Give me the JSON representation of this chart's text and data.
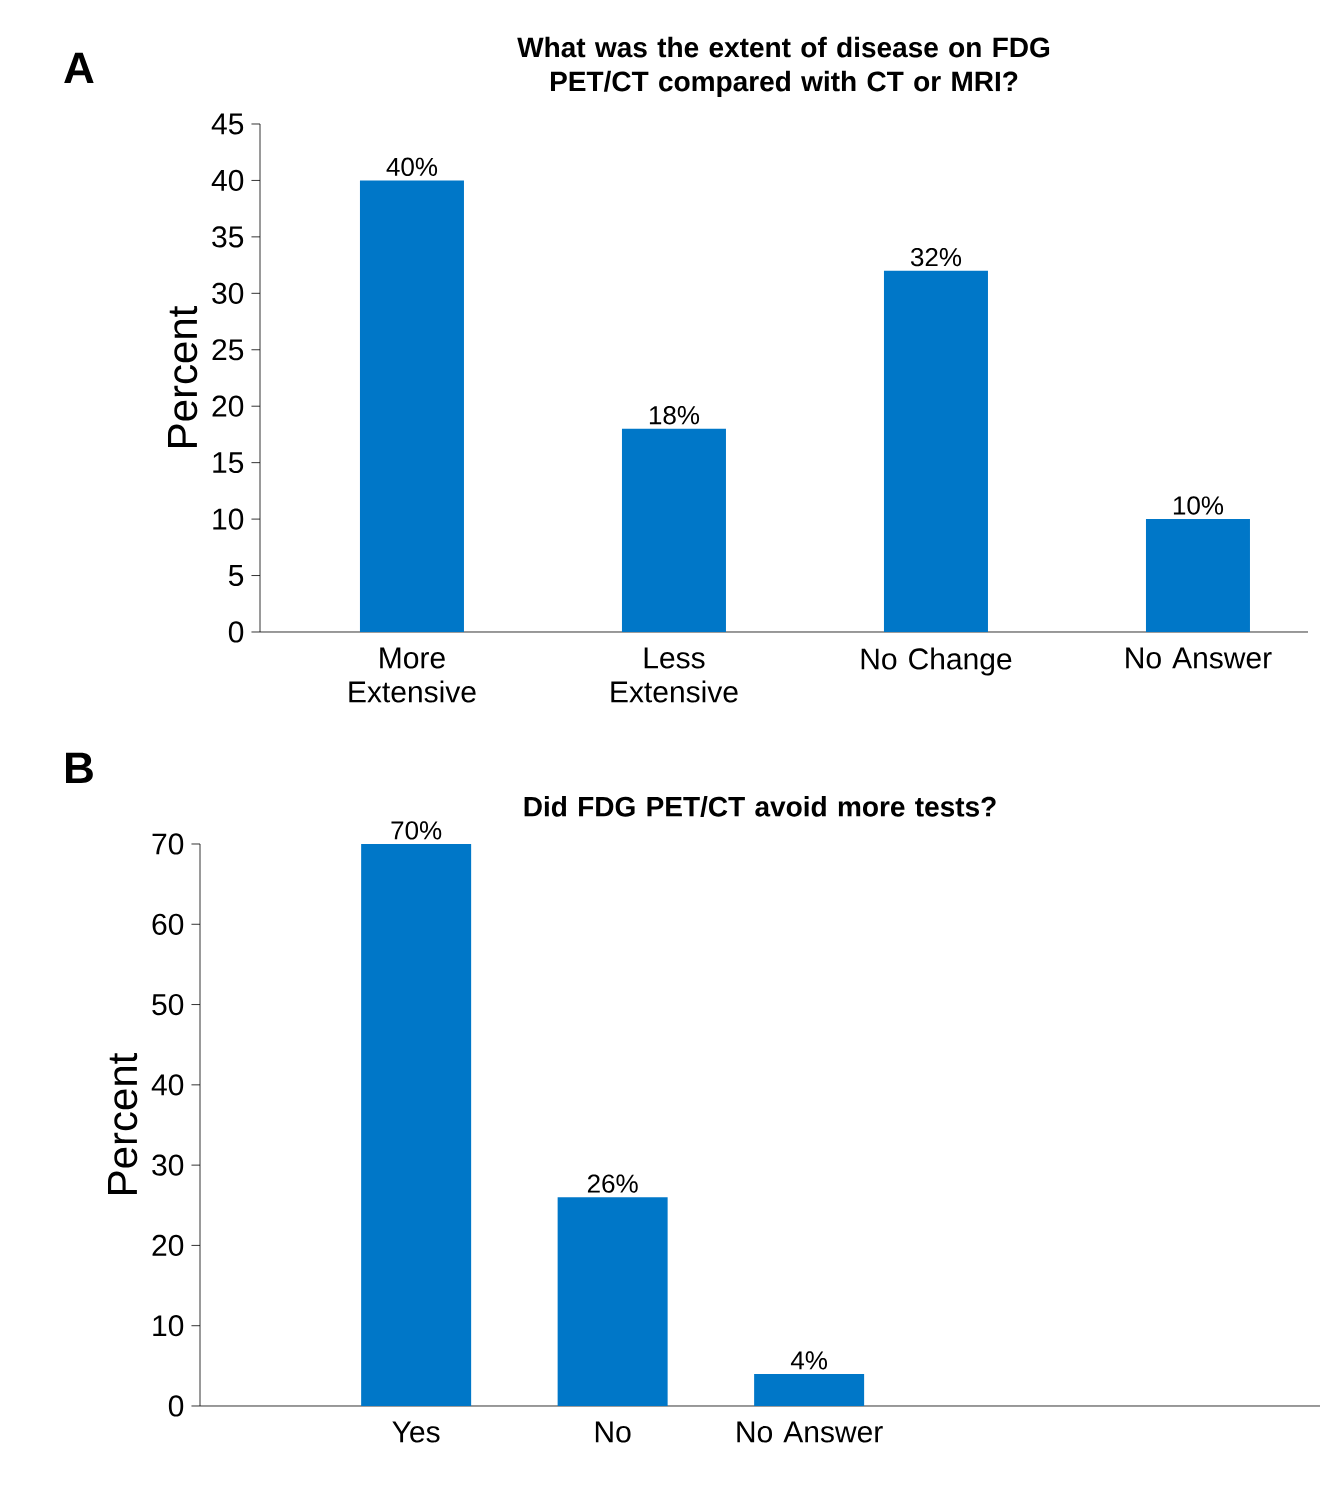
{
  "chart_data": [
    {
      "type": "bar",
      "title": "What was the extent of disease on FDG PET/CT compared with CT or MRI?",
      "annotations": [
        "A"
      ],
      "ylabel": "Percent",
      "categories": [
        "More Extensive",
        "Less Extensive",
        "No Change",
        "No Answer"
      ],
      "values": [
        40,
        18,
        32,
        10
      ],
      "value_labels": [
        "40%",
        "18%",
        "32%",
        "10%"
      ],
      "color": "#0077c8",
      "ylim": [
        0,
        45
      ],
      "yticks": [
        0,
        5,
        10,
        15,
        20,
        25,
        30,
        35,
        40,
        45
      ]
    },
    {
      "type": "bar",
      "title": "Did FDG PET/CT avoid more tests?",
      "annotations": [
        "B"
      ],
      "ylabel": "Percent",
      "categories": [
        "Yes",
        "No",
        "No Answer"
      ],
      "values": [
        70,
        26,
        4
      ],
      "value_labels": [
        "70%",
        "26%",
        "4%"
      ],
      "color": "#0077c8",
      "ylim": [
        0,
        70
      ],
      "yticks": [
        0,
        10,
        20,
        30,
        40,
        50,
        60,
        70
      ]
    }
  ]
}
